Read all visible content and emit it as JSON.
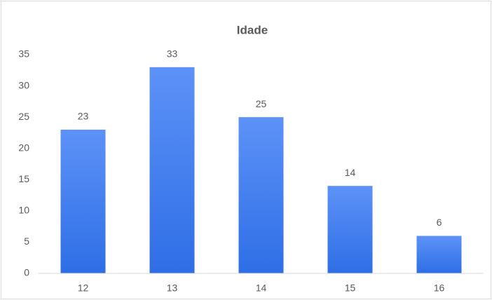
{
  "chart_data": {
    "type": "bar",
    "title": "Idade",
    "categories": [
      "12",
      "13",
      "14",
      "15",
      "16"
    ],
    "values": [
      23,
      33,
      25,
      14,
      6
    ],
    "color": "#3b7bf0",
    "ylim": [
      0,
      35
    ],
    "yticks": [
      0,
      5,
      10,
      15,
      20,
      25,
      30,
      35
    ],
    "grid": false
  }
}
